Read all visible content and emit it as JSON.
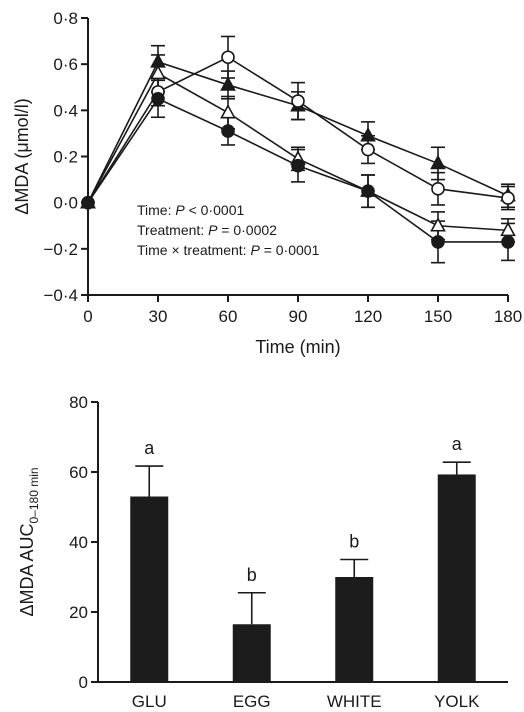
{
  "chart_data": [
    {
      "type": "line",
      "title": "",
      "xlabel": "Time (min)",
      "ylabel": "ΔMDA (μmol/l)",
      "xlim": [
        0,
        180
      ],
      "ylim": [
        -0.4,
        0.8
      ],
      "x": [
        0,
        30,
        60,
        90,
        120,
        150,
        180
      ],
      "x_tick_labels": [
        "0",
        "30",
        "60",
        "90",
        "120",
        "150",
        "180"
      ],
      "y_ticks": [
        -0.4,
        -0.2,
        0.0,
        0.2,
        0.4,
        0.6,
        0.8
      ],
      "y_tick_labels": [
        "−0·4",
        "−0·2",
        "0·0",
        "0·2",
        "0·4",
        "0·6",
        "0·8"
      ],
      "grid": false,
      "legend": "none",
      "series": [
        {
          "marker": "filled-triangle",
          "values": [
            0,
            0.61,
            0.51,
            0.42,
            0.29,
            0.17,
            0.03
          ],
          "errors": [
            0,
            0.07,
            0.06,
            0.06,
            0.06,
            0.07,
            0.05
          ]
        },
        {
          "marker": "open-circle",
          "values": [
            0,
            0.48,
            0.63,
            0.44,
            0.23,
            0.06,
            0.02
          ],
          "errors": [
            0,
            0.06,
            0.09,
            0.08,
            0.06,
            0.07,
            0.05
          ]
        },
        {
          "marker": "open-triangle",
          "values": [
            0,
            0.56,
            0.39,
            0.19,
            0.05,
            -0.1,
            -0.12
          ],
          "errors": [
            0,
            0.08,
            0.07,
            0.05,
            0.07,
            0.06,
            0.05
          ]
        },
        {
          "marker": "filled-circle",
          "values": [
            0,
            0.45,
            0.31,
            0.16,
            0.05,
            -0.17,
            -0.17
          ],
          "errors": [
            0,
            0.08,
            0.06,
            0.07,
            0.07,
            0.09,
            0.08
          ]
        }
      ],
      "annotations": [
        {
          "label": "Time: ",
          "p": "P",
          "rest": " < 0·0001"
        },
        {
          "label": "Treatment: ",
          "p": "P",
          "rest": " = 0·0002"
        },
        {
          "label": "Time × treatment: ",
          "p": "P",
          "rest": " = 0·0001"
        }
      ]
    },
    {
      "type": "bar",
      "title": "",
      "xlabel": "",
      "ylabel_main": "ΔMDA AUC",
      "ylabel_sub": "0–180 min",
      "ylim": [
        0,
        80
      ],
      "y_ticks": [
        0,
        20,
        40,
        60,
        80
      ],
      "y_tick_labels": [
        "0",
        "20",
        "40",
        "60",
        "80"
      ],
      "categories": [
        "GLU",
        "EGG",
        "WHITE",
        "YOLK"
      ],
      "values": [
        53,
        16.5,
        30,
        59.3
      ],
      "errors": [
        8.7,
        9,
        5,
        3.5
      ],
      "significance_letters": [
        "a",
        "b",
        "b",
        "a"
      ],
      "bar_color": "#1c1c1c"
    }
  ]
}
